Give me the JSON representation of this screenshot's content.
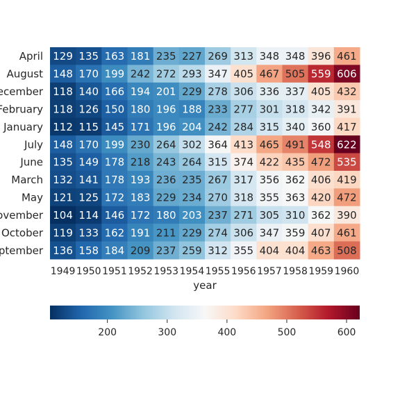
{
  "chart_data": {
    "type": "heatmap",
    "title": "",
    "xlabel": "year",
    "ylabel": "",
    "x": [
      "1949",
      "1950",
      "1951",
      "1952",
      "1953",
      "1954",
      "1955",
      "1956",
      "1957",
      "1958",
      "1959",
      "1960"
    ],
    "y": [
      "April",
      "August",
      "December",
      "February",
      "January",
      "July",
      "June",
      "March",
      "May",
      "November",
      "October",
      "September"
    ],
    "values": [
      [
        129,
        135,
        163,
        181,
        235,
        227,
        269,
        313,
        348,
        348,
        396,
        461
      ],
      [
        148,
        170,
        199,
        242,
        272,
        293,
        347,
        405,
        467,
        505,
        559,
        606
      ],
      [
        118,
        140,
        166,
        194,
        201,
        229,
        278,
        306,
        336,
        337,
        405,
        432
      ],
      [
        118,
        126,
        150,
        180,
        196,
        188,
        233,
        277,
        301,
        318,
        342,
        391
      ],
      [
        112,
        115,
        145,
        171,
        196,
        204,
        242,
        284,
        315,
        340,
        360,
        417
      ],
      [
        148,
        170,
        199,
        230,
        264,
        302,
        364,
        413,
        465,
        491,
        548,
        622
      ],
      [
        135,
        149,
        178,
        218,
        243,
        264,
        315,
        374,
        422,
        435,
        472,
        535
      ],
      [
        132,
        141,
        178,
        193,
        236,
        235,
        267,
        317,
        356,
        362,
        406,
        419
      ],
      [
        121,
        125,
        172,
        183,
        229,
        234,
        270,
        318,
        355,
        363,
        420,
        472
      ],
      [
        104,
        114,
        146,
        172,
        180,
        203,
        237,
        271,
        305,
        310,
        362,
        390
      ],
      [
        119,
        133,
        162,
        191,
        211,
        229,
        274,
        306,
        347,
        359,
        407,
        461
      ],
      [
        136,
        158,
        184,
        209,
        237,
        259,
        312,
        355,
        404,
        404,
        463,
        508
      ]
    ],
    "colormap": "RdBu_r",
    "vmin": 104,
    "vmax": 622,
    "annotations": true,
    "colorbar": {
      "orientation": "horizontal",
      "ticks": [
        200,
        300,
        400,
        500,
        600
      ]
    }
  }
}
